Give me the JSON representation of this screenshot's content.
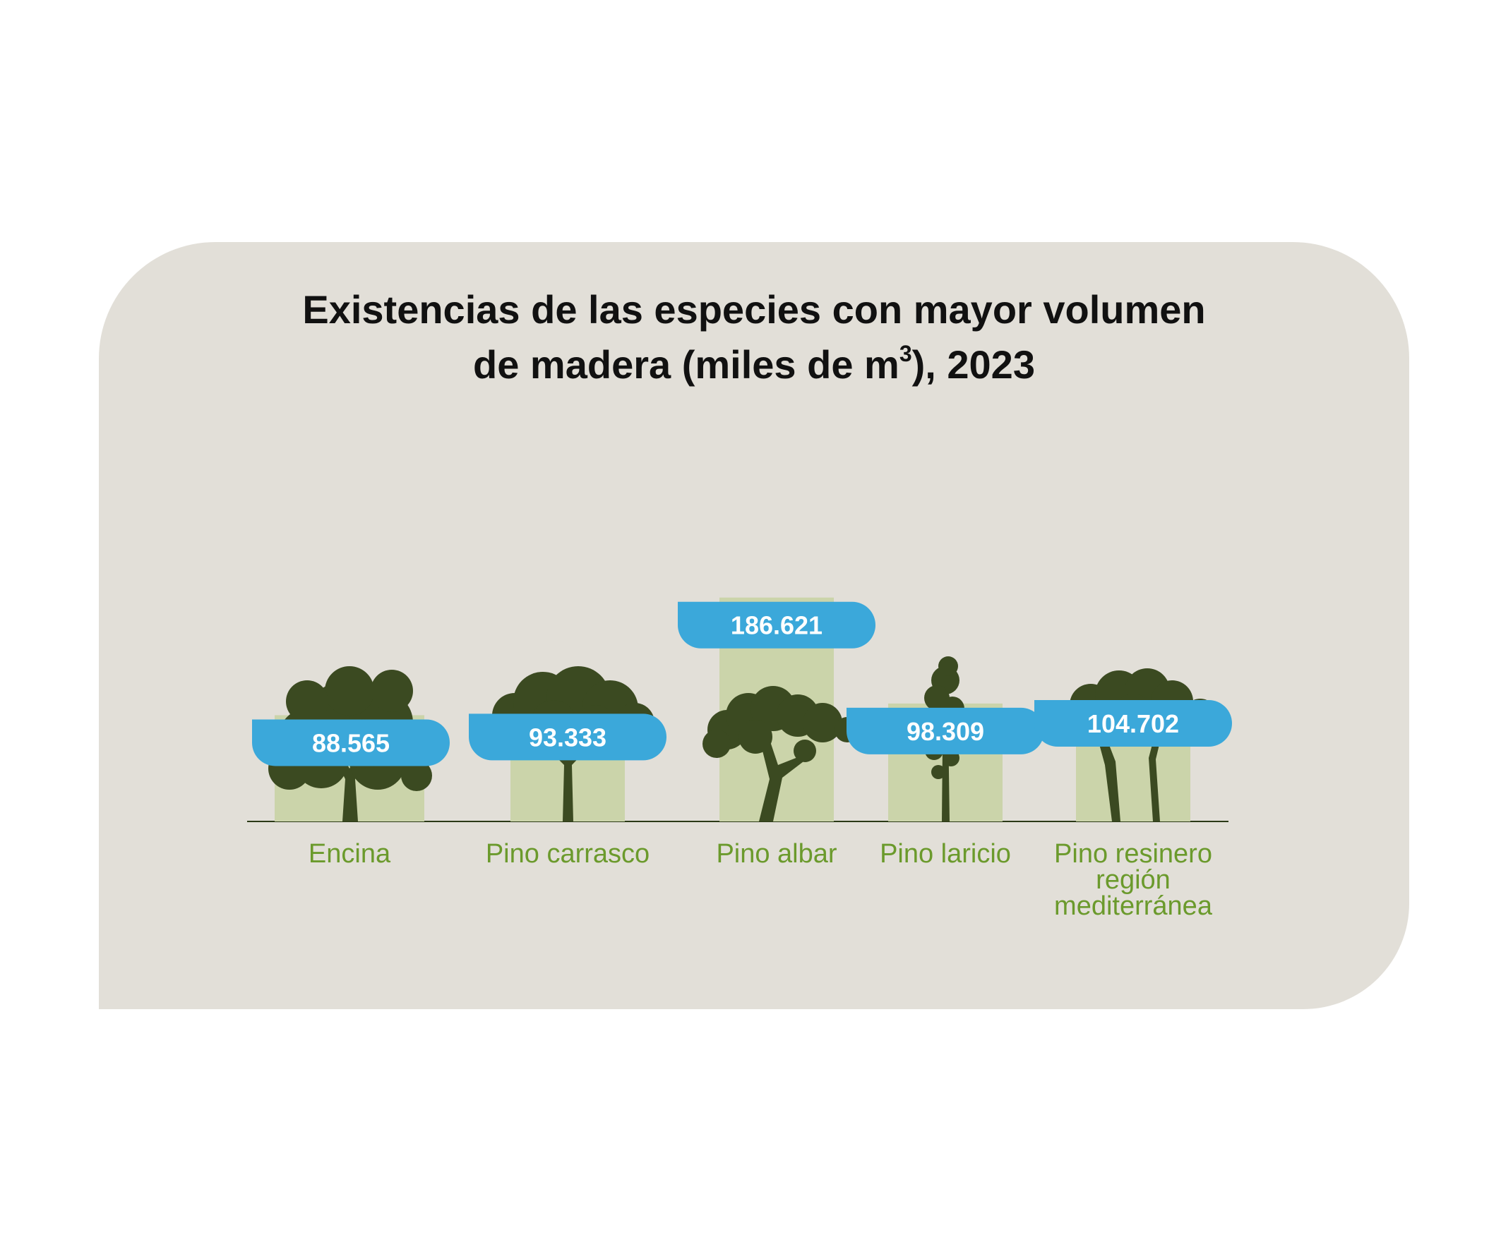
{
  "title": {
    "line1": "Existencias de las especies con mayor volumen",
    "line2_pre": "de madera (miles de m",
    "line2_sup": "3",
    "line2_post": "), 2023"
  },
  "colors": {
    "background_card": "#e2dfd8",
    "bar": "#cbd4aa",
    "label_pill": "#3ba8da",
    "label_text": "#ffffff",
    "category_text": "#6b9a2c",
    "tree": "#3b4a21",
    "baseline": "#2b3a16"
  },
  "chart_data": {
    "type": "bar",
    "title": "Existencias de las especies con mayor volumen de madera (miles de m3), 2023",
    "categories": [
      "Encina",
      "Pino carrasco",
      "Pino albar",
      "Pino laricio",
      "Pino resinero región mediterránea"
    ],
    "category_lines": [
      [
        "Encina"
      ],
      [
        "Pino carrasco"
      ],
      [
        "Pino albar"
      ],
      [
        "Pino laricio"
      ],
      [
        "Pino resinero",
        "región",
        "mediterránea"
      ]
    ],
    "values": [
      88565,
      93333,
      186621,
      98309,
      104702
    ],
    "value_labels": [
      "88.565",
      "93.333",
      "186.621",
      "98.309",
      "104.702"
    ],
    "icons": [
      "encina-tree-icon",
      "pino-carrasco-tree-icon",
      "pino-albar-tree-icon",
      "pino-laricio-tree-icon",
      "pino-resinero-tree-icon"
    ],
    "xlabel": "",
    "ylabel": "",
    "grid": false
  }
}
